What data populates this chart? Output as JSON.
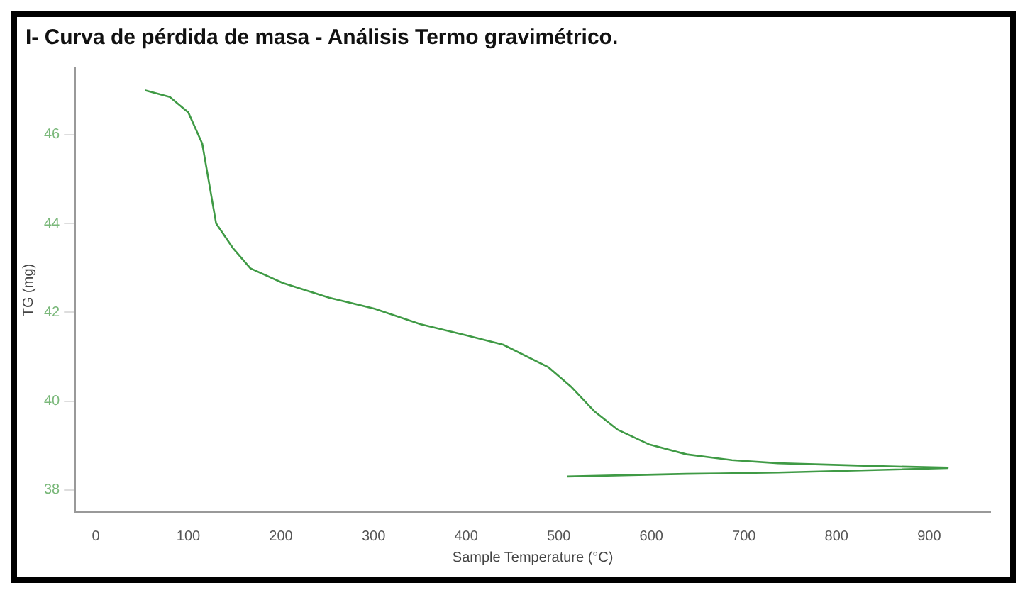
{
  "chart_data": {
    "type": "line",
    "title": "I-  Curva de pérdida de masa - Análisis  Termo gravimétrico.",
    "xlabel": "Sample Temperature (°C)",
    "ylabel": "TG (mg)",
    "series": [
      {
        "color": "#3f9a45",
        "x": [
          53,
          80,
          100,
          115,
          130,
          148,
          167,
          202,
          252,
          301,
          351,
          400,
          440,
          489,
          514,
          539,
          564,
          598,
          638,
          687,
          737,
          836,
          920,
          920,
          737,
          638,
          509
        ],
        "values": [
          47.0,
          46.85,
          46.5,
          45.8,
          44.0,
          43.45,
          42.99,
          42.66,
          42.33,
          42.08,
          41.73,
          41.48,
          41.27,
          40.76,
          40.31,
          39.76,
          39.35,
          39.02,
          38.8,
          38.67,
          38.6,
          38.54,
          38.5,
          38.49,
          38.39,
          38.36,
          38.3
        ]
      }
    ],
    "xlim": [
      -22,
      966
    ],
    "xticks": [
      0,
      100,
      200,
      300,
      400,
      500,
      600,
      700,
      800,
      900
    ],
    "ylim": [
      37.5,
      47.5
    ],
    "yticks": [
      38,
      40,
      42,
      44,
      46
    ],
    "grid": false,
    "legend": false,
    "marker": "none",
    "line_style": "solid"
  }
}
